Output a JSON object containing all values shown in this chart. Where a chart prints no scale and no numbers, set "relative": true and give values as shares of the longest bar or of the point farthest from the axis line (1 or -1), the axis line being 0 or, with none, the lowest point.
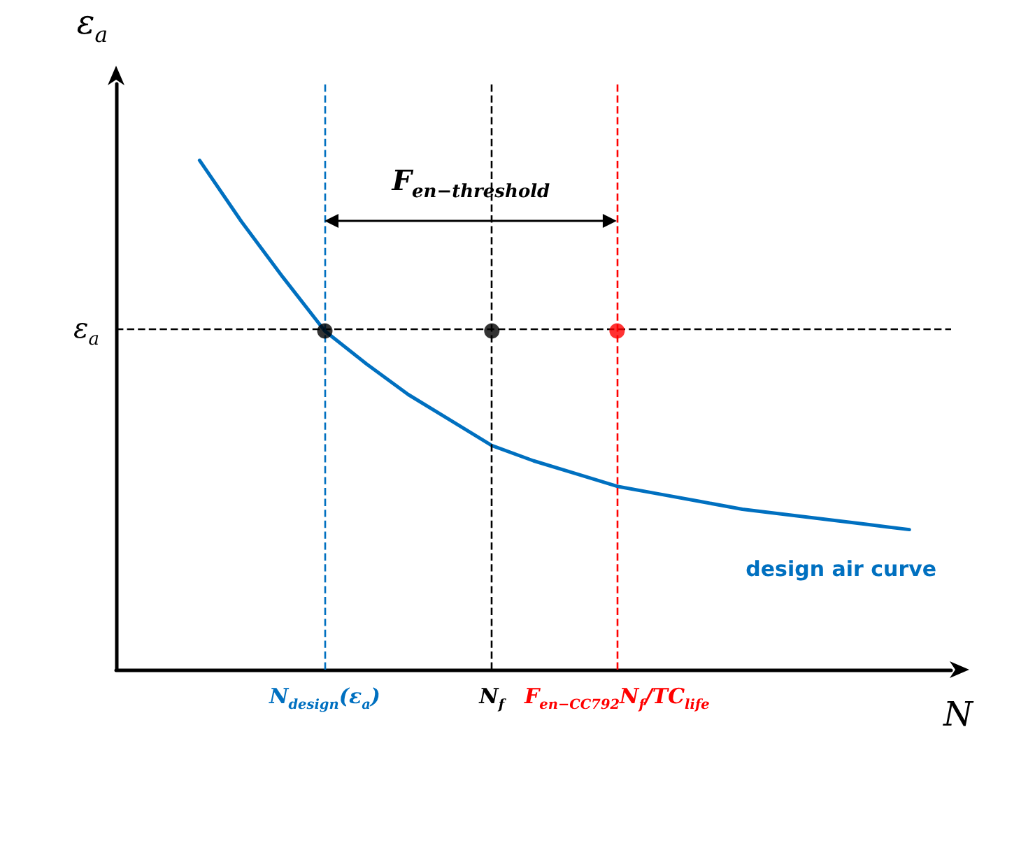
{
  "chart_data": {
    "type": "line",
    "relative": true,
    "xlabel": "N",
    "ylabel": "ε$_{a}$",
    "categories": [
      null,
      null,
      null,
      null,
      null,
      "N$_{design}$(ε$_{a}$)",
      null,
      null,
      null,
      "N$_{f}$",
      null,
      null,
      "F$_{en−CC792}$N$_{f}$/TC$_{life}$",
      null,
      null,
      null,
      null,
      null,
      null,
      null,
      null
    ],
    "series": [
      {
        "name": "design air curve",
        "color": "#0070c0",
        "values": [
          null,
          null,
          1.0,
          0.88,
          0.77,
          0.665,
          0.6,
          0.54,
          0.49,
          0.44,
          0.41,
          0.385,
          0.36,
          0.345,
          0.33,
          0.315,
          0.305,
          0.295,
          0.285,
          0.275,
          null
        ]
      },
      {
        "type": "scatter",
        "marker": "circle",
        "x": [
          "N$_{design}$(ε$_{a}$)",
          "N$_{f}$",
          "F$_{en−CC792}$N$_{f}$/TC$_{life}$"
        ],
        "values": [
          0.665,
          0.665,
          0.665
        ],
        "colors": [
          "#000000",
          "#000000",
          "#ff0000"
        ]
      }
    ],
    "ref_lines": [
      {
        "axis": "y",
        "value": 0.665,
        "label": "ε$_{a}$",
        "color": "#000000",
        "line_style": "dashed"
      },
      {
        "axis": "x",
        "value": "N$_{design}$(ε$_{a}$)",
        "color": "#0070c0",
        "line_style": "dashed"
      },
      {
        "axis": "x",
        "value": "N$_{f}$",
        "color": "#000000",
        "line_style": "dashed"
      },
      {
        "axis": "x",
        "value": "F$_{en−CC792}$N$_{f}$/TC$_{life}$",
        "color": "#ff0000",
        "line_style": "dashed"
      }
    ],
    "annotations": [
      "F$_{en−threshold}$"
    ],
    "grid": false,
    "legend": false,
    "marker": "none",
    "line_style": "solid"
  }
}
